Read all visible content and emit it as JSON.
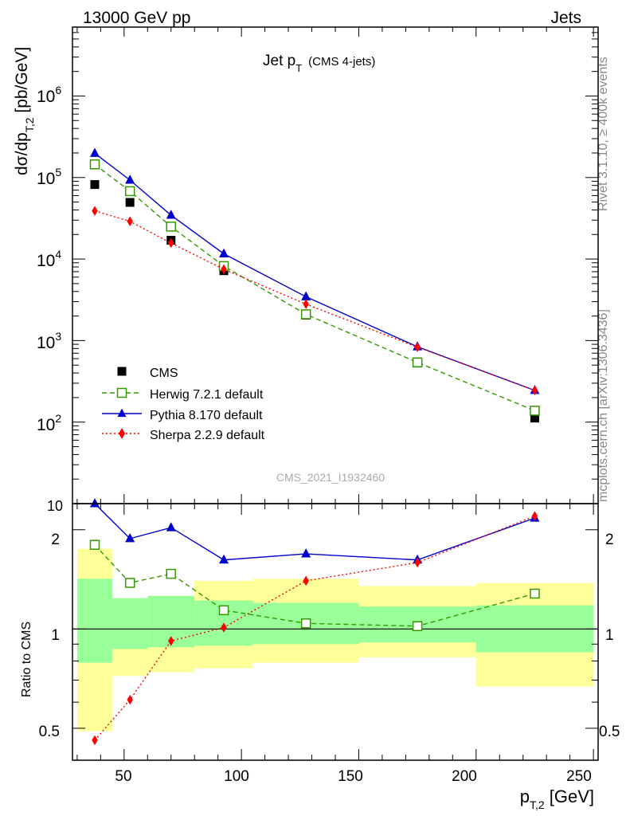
{
  "header": {
    "left": "13000 GeV pp",
    "right": "Jets"
  },
  "side_labels": {
    "top": "Rivet 3.1.10, ≥ 400k events",
    "bottom": "mcplots.cern.ch [arXiv:1306.3436]"
  },
  "watermark": "CMS_2021_I1932460",
  "chart_data": [
    {
      "type": "scatter",
      "title": {
        "main": "Jet p",
        "sub": "T",
        "note": "(CMS 4-jets)"
      },
      "ylabel": {
        "main": "dσ/dp",
        "sub": "T,2",
        "unit": " [pb/GeV]"
      },
      "yscale": "log",
      "ylim": [
        10,
        7000000
      ],
      "xlim": [
        28,
        252
      ],
      "ytick_labels": [
        {
          "value": 10,
          "text": "10"
        },
        {
          "value": 100,
          "base": "10",
          "exp": "2"
        },
        {
          "value": 1000,
          "base": "10",
          "exp": "3"
        },
        {
          "value": 10000,
          "base": "10",
          "exp": "4"
        },
        {
          "value": 100000,
          "base": "10",
          "exp": "5"
        },
        {
          "value": 1000000,
          "base": "10",
          "exp": "6"
        }
      ],
      "x": [
        37.5,
        52.5,
        70,
        92.5,
        127.5,
        175,
        225
      ],
      "legend_position": "bottom-left",
      "series": [
        {
          "name": "CMS",
          "color": "#000000",
          "marker": "filled-square",
          "line": "none",
          "values": [
            82000,
            49500,
            17000,
            7200,
            2050,
            530,
            112
          ]
        },
        {
          "name": "Herwig 7.2.1 default",
          "color": "#339900",
          "marker": "open-square",
          "line": "dashed",
          "values": [
            145000,
            68000,
            25000,
            8200,
            2100,
            540,
            138
          ]
        },
        {
          "name": "Pythia 8.170 default",
          "color": "#0000cc",
          "marker": "filled-triangle",
          "line": "solid",
          "values": [
            198000,
            93000,
            34500,
            11600,
            3450,
            840,
            245
          ]
        },
        {
          "name": "Sherpa 2.2.9 default",
          "color": "#ff0000",
          "marker": "filled-diamond",
          "line": "dotted",
          "values": [
            39000,
            29000,
            15700,
            7500,
            2800,
            830,
            245
          ]
        }
      ]
    },
    {
      "type": "scatter",
      "ylabel": "Ratio to CMS",
      "xlabel": {
        "main": "p",
        "sub": "T,2",
        "unit": " [GeV]"
      },
      "yscale": "log",
      "ylim": [
        0.4,
        2.4
      ],
      "xlim": [
        28,
        252
      ],
      "xticks": [
        50,
        100,
        150,
        200,
        250
      ],
      "ytick_labels": [
        {
          "value": 0.5,
          "text": "0.5"
        },
        {
          "value": 1,
          "text": "1"
        },
        {
          "value": 2,
          "text": "2"
        }
      ],
      "x": [
        37.5,
        52.5,
        70,
        92.5,
        127.5,
        175,
        225
      ],
      "uncertainty_bands": [
        {
          "x0": 30,
          "x1": 45,
          "inner": [
            0.79,
            1.42
          ],
          "outer": [
            0.49,
            1.75
          ]
        },
        {
          "x0": 45,
          "x1": 60,
          "inner": [
            0.87,
            1.24
          ],
          "outer": [
            0.72,
            1.24
          ]
        },
        {
          "x0": 60,
          "x1": 80,
          "inner": [
            0.88,
            1.26
          ],
          "outer": [
            0.74,
            1.26
          ]
        },
        {
          "x0": 80,
          "x1": 105,
          "inner": [
            0.89,
            1.22
          ],
          "outer": [
            0.76,
            1.4
          ]
        },
        {
          "x0": 105,
          "x1": 150,
          "inner": [
            0.9,
            1.2
          ],
          "outer": [
            0.79,
            1.42
          ]
        },
        {
          "x0": 150,
          "x1": 200,
          "inner": [
            0.91,
            1.17
          ],
          "outer": [
            0.82,
            1.35
          ]
        },
        {
          "x0": 200,
          "x1": 250,
          "inner": [
            0.85,
            1.18
          ],
          "outer": [
            0.67,
            1.38
          ]
        }
      ],
      "series": [
        {
          "name": "Herwig 7.2.1 default",
          "color": "#339900",
          "marker": "open-square",
          "line": "dashed",
          "values": [
            1.8,
            1.38,
            1.47,
            1.14,
            1.04,
            1.02,
            1.28
          ]
        },
        {
          "name": "Pythia 8.170 default",
          "color": "#0000cc",
          "marker": "filled-triangle",
          "line": "solid",
          "values": [
            2.42,
            1.88,
            2.03,
            1.62,
            1.69,
            1.62,
            2.17
          ]
        },
        {
          "name": "Sherpa 2.2.9 default",
          "color": "#ff0000",
          "marker": "filled-diamond",
          "line": "dotted",
          "values": [
            0.46,
            0.61,
            0.92,
            1.01,
            1.4,
            1.59,
            2.2
          ]
        }
      ]
    }
  ]
}
